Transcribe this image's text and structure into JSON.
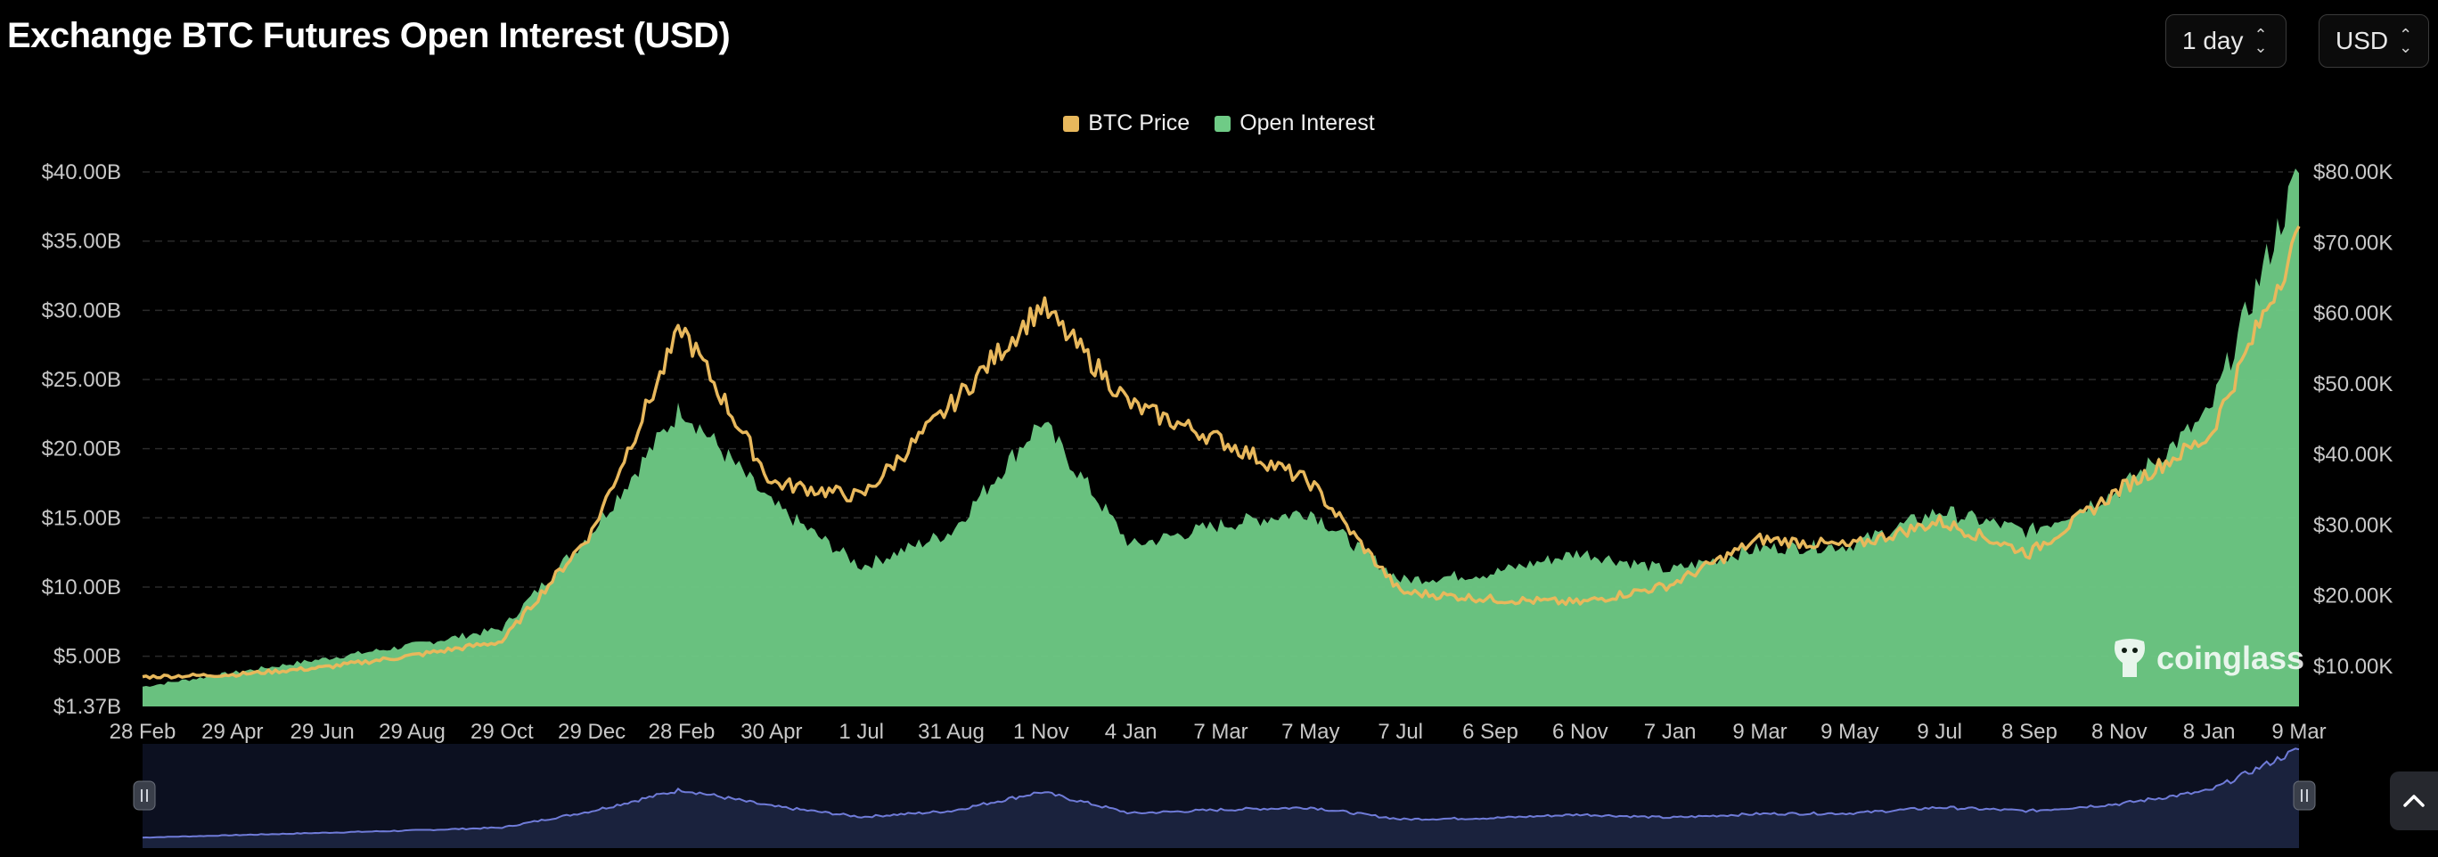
{
  "header": {
    "title": "Exchange BTC Futures Open Interest (USD)"
  },
  "controls": {
    "period": {
      "value": "1 day"
    },
    "unit": {
      "value": "USD"
    }
  },
  "watermark": "coinglass",
  "colors": {
    "price": "#e8b85c",
    "oi": "#6fcb86",
    "navigator_line": "#6f7bd8",
    "navigator_fill": "#1c2540",
    "background": "#000000"
  },
  "chart_data": {
    "type": "area",
    "legend": [
      {
        "name": "BTC Price",
        "color": "#e8b85c"
      },
      {
        "name": "Open Interest",
        "color": "#6fcb86"
      }
    ],
    "legend_placement": "top-center",
    "grid": true,
    "left_axis": {
      "ticks": [
        "$40.00B",
        "$35.00B",
        "$30.00B",
        "$25.00B",
        "$20.00B",
        "$15.00B",
        "$10.00B",
        "$5.00B",
        "$1.37B"
      ],
      "tick_values": [
        40,
        35,
        30,
        25,
        20,
        15,
        10,
        5,
        1.37
      ],
      "range": [
        1.37,
        40
      ]
    },
    "right_axis": {
      "ticks": [
        "$80.00K",
        "$70.00K",
        "$60.00K",
        "$50.00K",
        "$40.00K",
        "$30.00K",
        "$20.00K",
        "$10.00K"
      ],
      "tick_values": [
        80,
        70,
        60,
        50,
        40,
        30,
        20,
        10
      ],
      "range": [
        4.3,
        80
      ]
    },
    "x_ticks": [
      "28 Feb",
      "29 Apr",
      "29 Jun",
      "29 Aug",
      "29 Oct",
      "29 Dec",
      "28 Feb",
      "30 Apr",
      "1 Jul",
      "31 Aug",
      "1 Nov",
      "4 Jan",
      "7 Mar",
      "7 May",
      "7 Jul",
      "6 Sep",
      "6 Nov",
      "7 Jan",
      "9 Mar",
      "9 May",
      "9 Jul",
      "8 Sep",
      "8 Nov",
      "8 Jan",
      "9 Mar"
    ],
    "series": [
      {
        "name": "Open Interest",
        "unit": "USD billions",
        "x": [
          0,
          1,
          2,
          3,
          4,
          5,
          6,
          7,
          8,
          9,
          10,
          11,
          12,
          13,
          14,
          15,
          16,
          17,
          18,
          19,
          20,
          21,
          22,
          23,
          24
        ],
        "values": [
          2.8,
          3.8,
          4.8,
          5.8,
          7.0,
          14.0,
          23.0,
          16.0,
          11.5,
          14.0,
          22.0,
          13.0,
          14.5,
          15.5,
          10.5,
          11.0,
          12.5,
          11.2,
          12.8,
          13.0,
          15.5,
          14.0,
          17.0,
          22.5,
          40.0
        ]
      },
      {
        "name": "BTC Price",
        "unit": "USD thousands",
        "x": [
          0,
          1,
          2,
          3,
          4,
          5,
          6,
          7,
          8,
          9,
          10,
          11,
          12,
          13,
          14,
          15,
          16,
          17,
          18,
          19,
          20,
          21,
          22,
          23,
          24
        ],
        "values": [
          8.5,
          8.8,
          9.8,
          11.5,
          13.5,
          29.0,
          58.0,
          36.0,
          34.0,
          47.0,
          61.0,
          47.0,
          42.0,
          36.0,
          20.5,
          19.5,
          19.0,
          21.5,
          28.0,
          27.0,
          30.5,
          26.0,
          35.0,
          42.5,
          71.0
        ]
      }
    ]
  }
}
